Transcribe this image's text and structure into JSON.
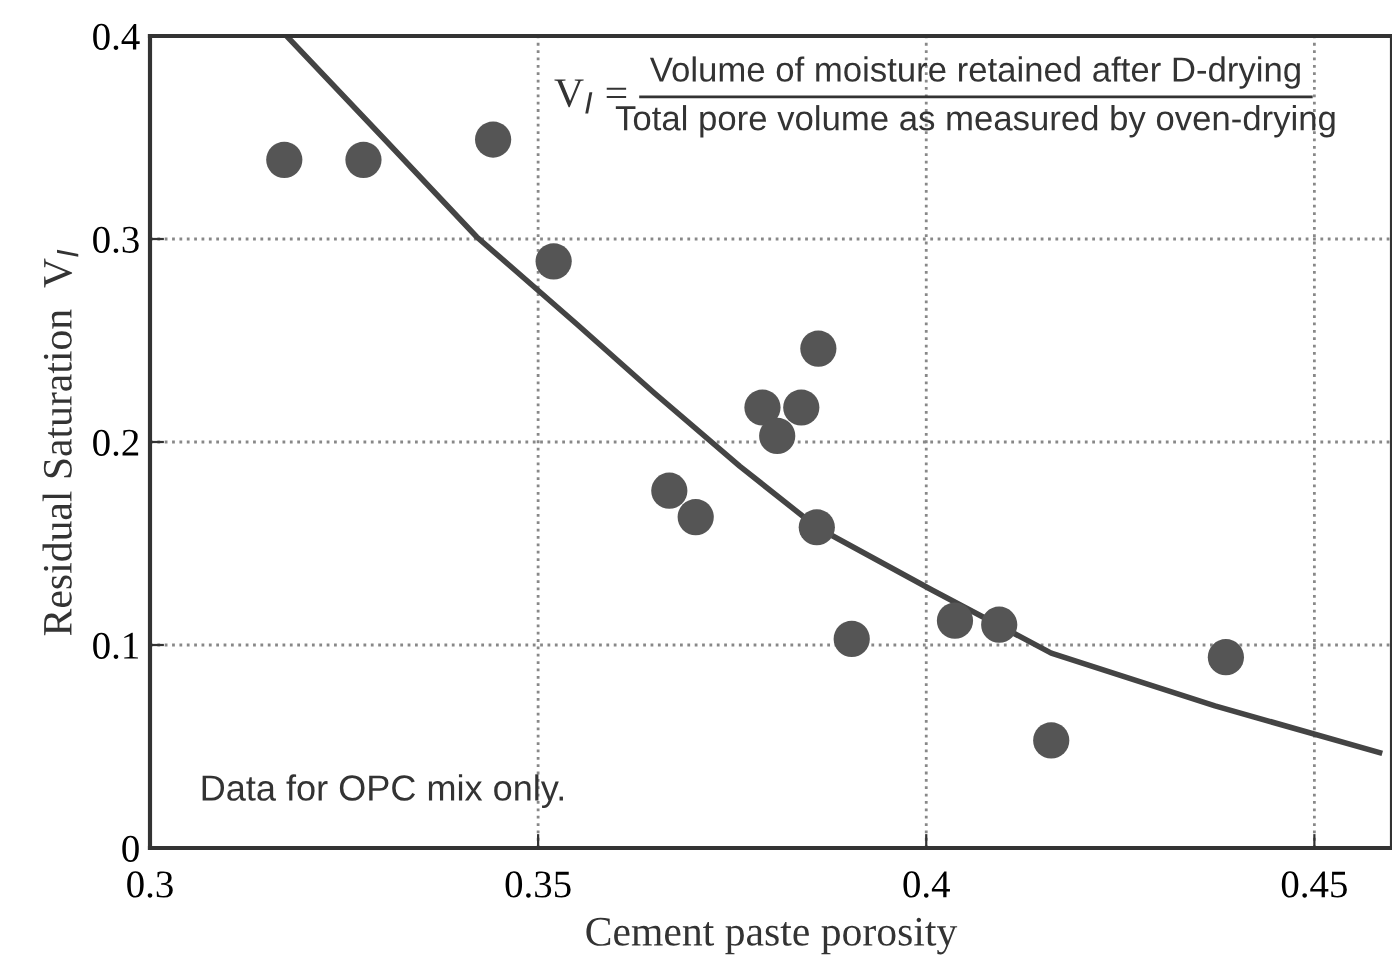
{
  "chart_data": {
    "type": "scatter",
    "xlabel": "Cement paste porosity",
    "ylabel": "Residual Saturation  V$_{I}$",
    "annotations": [
      "V$_{I}$ =",
      "Volume of moisture retained after D-drying",
      "Total pore volume as measured by oven-drying",
      "Data for OPC mix only."
    ],
    "series": [
      {
        "color": "#555555",
        "marker": "circle",
        "x": [
          0.3173,
          0.3275,
          0.3442,
          0.352,
          0.3861,
          0.3789,
          0.3839,
          0.3808,
          0.3669,
          0.3703,
          0.3859,
          0.3904,
          0.4037,
          0.4094,
          0.4161,
          0.4386
        ],
        "values": [
          0.339,
          0.339,
          0.349,
          0.289,
          0.246,
          0.217,
          0.217,
          0.203,
          0.176,
          0.163,
          0.158,
          0.103,
          0.112,
          0.11,
          0.053,
          0.094
        ]
      },
      {
        "type": "line",
        "color": "#444444",
        "marker": "none",
        "line_style": "solid",
        "x": [
          0.3176,
          0.33,
          0.3421,
          0.355,
          0.365,
          0.376,
          0.3859,
          0.4008,
          0.4161,
          0.4372,
          0.4584
        ],
        "values": [
          0.4,
          0.35,
          0.301,
          0.258,
          0.224,
          0.188,
          0.158,
          0.127,
          0.096,
          0.07,
          0.047
        ]
      }
    ],
    "xlim": [
      0.3,
      0.46
    ],
    "ylim": [
      0,
      0.4
    ],
    "xticks": [
      0.3,
      0.35,
      0.4,
      0.45
    ],
    "yticks": [
      0,
      0.1,
      0.2,
      0.3,
      0.4
    ],
    "grid": true
  }
}
